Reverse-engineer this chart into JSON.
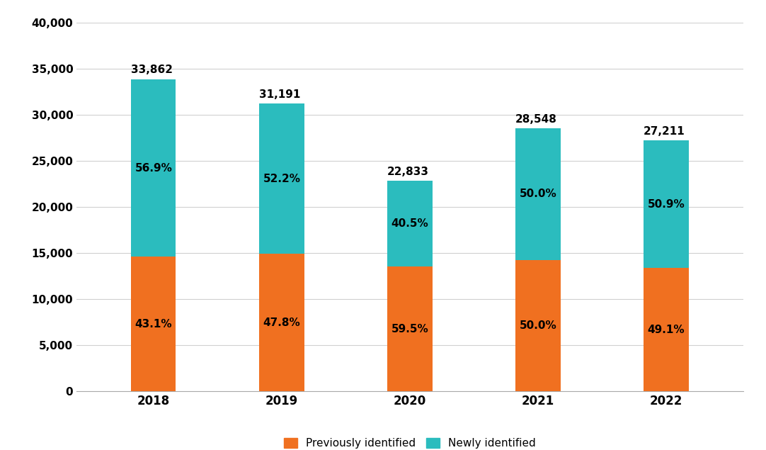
{
  "years": [
    "2018",
    "2019",
    "2020",
    "2021",
    "2022"
  ],
  "totals": [
    33862,
    31191,
    22833,
    28548,
    27211
  ],
  "previously_pct": [
    43.1,
    47.8,
    59.5,
    50.0,
    49.1
  ],
  "newly_pct": [
    56.9,
    52.2,
    40.5,
    50.0,
    50.9
  ],
  "previously_values": [
    14594,
    14909,
    13585,
    14274,
    13371
  ],
  "newly_values": [
    19268,
    16282,
    9248,
    14274,
    13840
  ],
  "color_previously": "#F07020",
  "color_newly": "#2BBCBE",
  "legend_previously": "Previously identified",
  "legend_newly": "Newly identified",
  "ylim": [
    0,
    40000
  ],
  "yticks": [
    0,
    5000,
    10000,
    15000,
    20000,
    25000,
    30000,
    35000,
    40000
  ],
  "background_color": "#ffffff",
  "grid_color": "#d0d0d0",
  "bar_width": 0.35
}
